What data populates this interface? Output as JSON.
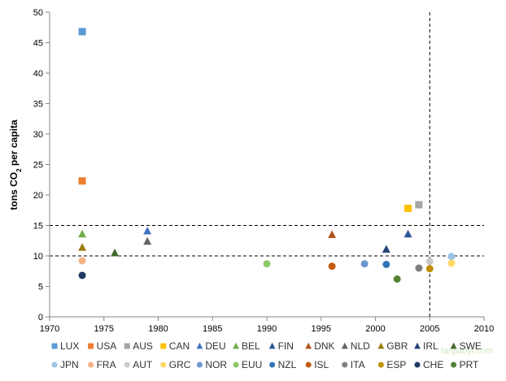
{
  "chart_data": {
    "type": "scatter",
    "title": "",
    "xlabel": "",
    "ylabel": "tons CO",
    "ylabel_sub": "2",
    "ylabel_suffix": " per capita",
    "xlim": [
      1970,
      2010
    ],
    "ylim": [
      0,
      50
    ],
    "x_ticks": [
      1970,
      1975,
      1980,
      1985,
      1990,
      1995,
      2000,
      2005,
      2010
    ],
    "y_ticks": [
      0,
      5,
      10,
      15,
      20,
      25,
      30,
      35,
      40,
      45,
      50
    ],
    "grid": false,
    "reference_lines": {
      "horizontal": [
        15,
        10
      ],
      "vertical": [
        2005
      ]
    },
    "legend_position": "bottom",
    "series": [
      {
        "name": "LUX",
        "marker": "square",
        "color": "#5b9bd5",
        "x": 1973,
        "y": 46.8
      },
      {
        "name": "USA",
        "marker": "square",
        "color": "#ed7d31",
        "x": 1973,
        "y": 22.3
      },
      {
        "name": "AUS",
        "marker": "square",
        "color": "#a5a5a5",
        "x": 2004,
        "y": 18.4
      },
      {
        "name": "CAN",
        "marker": "square",
        "color": "#ffc000",
        "x": 2003,
        "y": 17.8
      },
      {
        "name": "DEU",
        "marker": "triangle",
        "color": "#4472c4",
        "x": 1979,
        "y": 14.1
      },
      {
        "name": "BEL",
        "marker": "triangle",
        "color": "#70ad47",
        "x": 1973,
        "y": 13.6
      },
      {
        "name": "FIN",
        "marker": "triangle",
        "color": "#2e5597",
        "x": 2003,
        "y": 13.6
      },
      {
        "name": "DNK",
        "marker": "triangle",
        "color": "#b3561c",
        "x": 1996,
        "y": 13.5
      },
      {
        "name": "NLD",
        "marker": "triangle",
        "color": "#636363",
        "x": 1979,
        "y": 12.4
      },
      {
        "name": "GBR",
        "marker": "triangle",
        "color": "#9a7b0c",
        "x": 1973,
        "y": 11.4
      },
      {
        "name": "IRL",
        "marker": "triangle",
        "color": "#264478",
        "x": 2001,
        "y": 11.1
      },
      {
        "name": "SWE",
        "marker": "triangle",
        "color": "#43682b",
        "x": 1976,
        "y": 10.5
      },
      {
        "name": "JPN",
        "marker": "circle",
        "color": "#9dc3e6",
        "x": 2007,
        "y": 9.9
      },
      {
        "name": "FRA",
        "marker": "circle",
        "color": "#f4b183",
        "x": 1973,
        "y": 9.2
      },
      {
        "name": "AUT",
        "marker": "circle",
        "color": "#c9c9c9",
        "x": 2005,
        "y": 9.1
      },
      {
        "name": "GRC",
        "marker": "circle",
        "color": "#ffd966",
        "x": 2007,
        "y": 8.8
      },
      {
        "name": "NOR",
        "marker": "circle",
        "color": "#6d94cf",
        "x": 1999,
        "y": 8.7
      },
      {
        "name": "EUU",
        "marker": "circle",
        "color": "#8fc866",
        "x": 1990,
        "y": 8.7
      },
      {
        "name": "NZL",
        "marker": "circle",
        "color": "#2f75b5",
        "x": 2001,
        "y": 8.6
      },
      {
        "name": "ISL",
        "marker": "circle",
        "color": "#c55a11",
        "x": 1996,
        "y": 8.3
      },
      {
        "name": "ITA",
        "marker": "circle",
        "color": "#7f7f7f",
        "x": 2004,
        "y": 8.0
      },
      {
        "name": "ESP",
        "marker": "circle",
        "color": "#bf9000",
        "x": 2005,
        "y": 7.9
      },
      {
        "name": "CHE",
        "marker": "circle",
        "color": "#1f3864",
        "x": 1973,
        "y": 6.8
      },
      {
        "name": "PRT",
        "marker": "circle",
        "color": "#548235",
        "x": 2002,
        "y": 6.2
      }
    ]
  },
  "watermark": {
    "text": "tanjiaoyi.com"
  }
}
